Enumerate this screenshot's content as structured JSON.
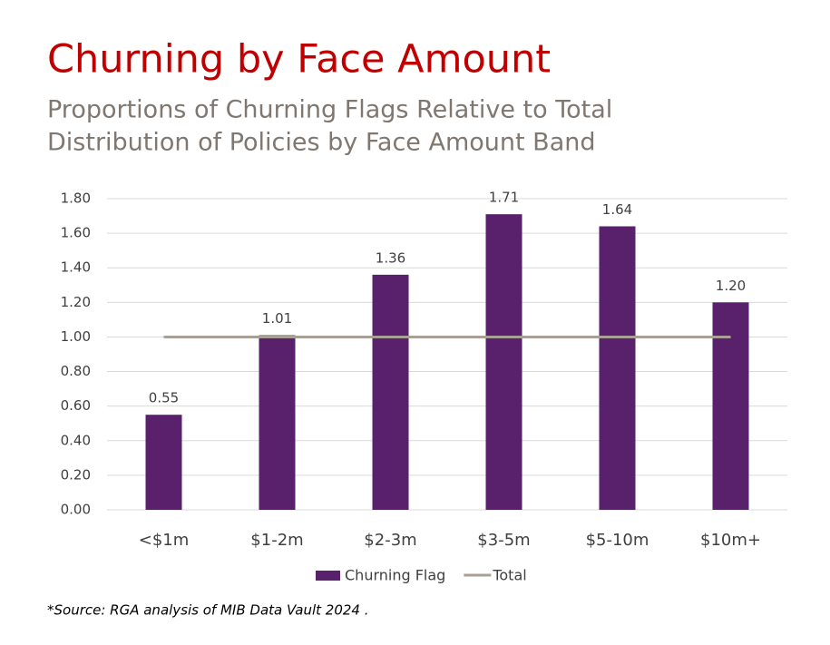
{
  "chart_data": {
    "type": "bar",
    "title": "Churning by Face Amount",
    "subtitle": [
      "Proportions of Churning Flags Relative to Total",
      "Distribution of Policies by Face Amount Band"
    ],
    "categories": [
      "<$1m",
      "$1-2m",
      "$2-3m",
      "$3-5m",
      "$5-10m",
      "$10m+"
    ],
    "series": [
      {
        "name": "Churning Flag",
        "type": "bar",
        "color": "#59206b",
        "values": [
          0.55,
          1.01,
          1.36,
          1.71,
          1.64,
          1.2
        ],
        "value_labels": [
          "0.55",
          "1.01",
          "1.36",
          "1.71",
          "1.64",
          "1.20"
        ]
      },
      {
        "name": "Total",
        "type": "line",
        "color": "#a8a097",
        "values": [
          1,
          1,
          1,
          1,
          1,
          1
        ]
      }
    ],
    "ylim": [
      0,
      1.8
    ],
    "yticks": [
      {
        "value": 0,
        "label": "0.00"
      },
      {
        "value": 0.2,
        "label": "0.20"
      },
      {
        "value": 0.4,
        "label": "0.40"
      },
      {
        "value": 0.6,
        "label": "0.60"
      },
      {
        "value": 0.8,
        "label": "0.80"
      },
      {
        "value": 1,
        "label": "1.00"
      },
      {
        "value": 1.2,
        "label": "1.20"
      },
      {
        "value": 1.4,
        "label": "1.40"
      },
      {
        "value": 1.6,
        "label": "1.60"
      },
      {
        "value": 1.8,
        "label": "1.80"
      }
    ],
    "grid": true,
    "legend": "bottom",
    "source": "*Source: RGA analysis of MIB Data Vault 2024 ."
  }
}
